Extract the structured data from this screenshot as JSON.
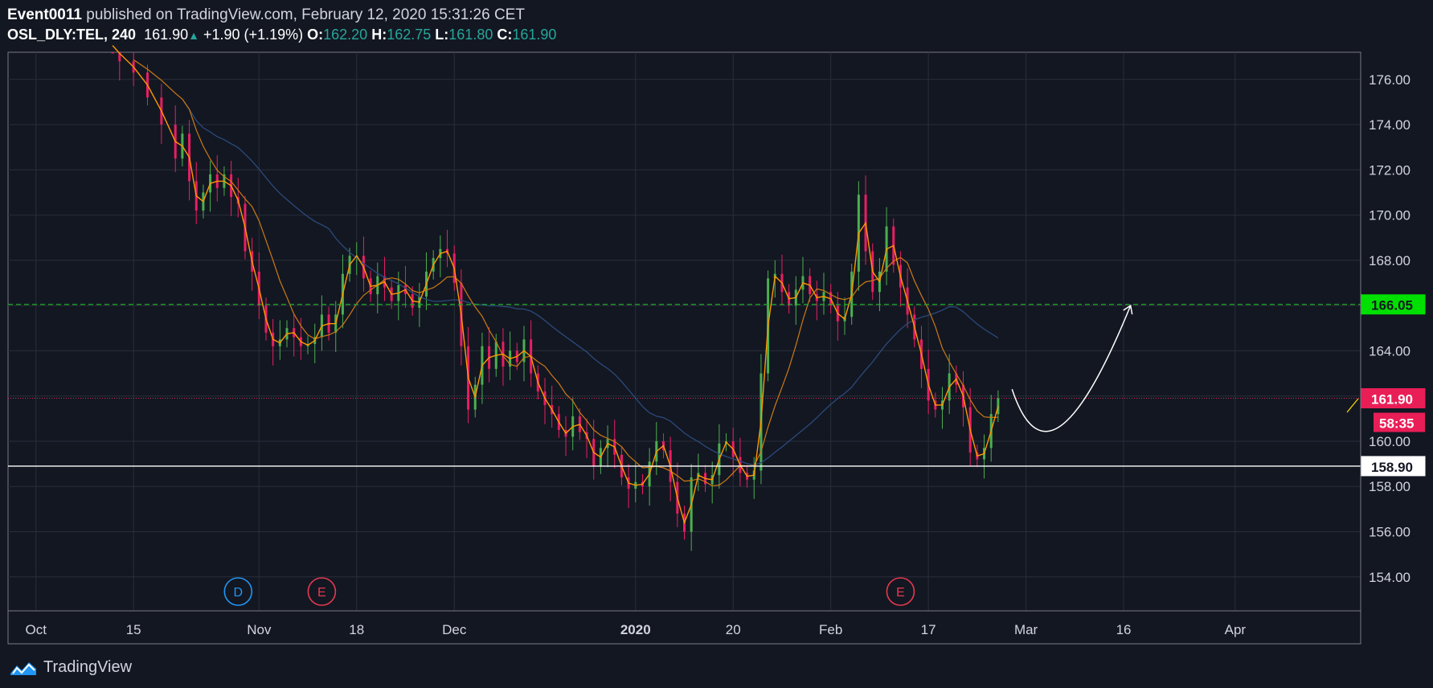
{
  "header": {
    "author": "Event0011",
    "published_text": "published on TradingView.com, February 12, 2020 15:31:26 CET",
    "symbol": "OSL_DLY:TEL, 240",
    "last": "161.90",
    "change": "+1.90 (+1.19%)",
    "o_label": "O:",
    "o": "162.20",
    "h_label": "H:",
    "h": "162.75",
    "l_label": "L:",
    "l": "161.80",
    "c_label": "C:",
    "c": "161.90"
  },
  "footer": {
    "brand": "TradingView"
  },
  "colors": {
    "background": "#131722",
    "grid": "#2a2e39",
    "up": "#4caf50",
    "down": "#e91e63",
    "ma_fast": "#ff9800",
    "ma_mid": "#cc7a14",
    "ma_slow": "#2a4a7a",
    "resistance": "#1faa2a",
    "price_line": "#d32f55",
    "support": "#ffffff"
  },
  "chart_data": {
    "type": "candlestick",
    "title": "OSL_DLY:TEL, 240",
    "ylim": [
      152.5,
      177.2
    ],
    "y_ticks": [
      154,
      156,
      158,
      160,
      162,
      164,
      166,
      168,
      170,
      172,
      174,
      176
    ],
    "y_tick_labels": [
      "154.00",
      "156.00",
      "158.00",
      "160.00",
      "162.00",
      "164.00",
      "166.00",
      "168.00",
      "170.00",
      "172.00",
      "174.00",
      "176.00"
    ],
    "x_tick_labels": [
      "Oct",
      "15",
      "Nov",
      "18",
      "Dec",
      "2020",
      "20",
      "Feb",
      "17",
      "Mar",
      "16",
      "Apr"
    ],
    "x_ticks_pos": [
      -5,
      2,
      11,
      18,
      25,
      38,
      45,
      52,
      59,
      66,
      73,
      81
    ],
    "x_range": [
      -7,
      90
    ],
    "close_series": [
      {
        "t": 0.5,
        "c": 177.5
      },
      {
        "t": 1,
        "c": 176.8
      },
      {
        "t": 2,
        "c": 176.3
      },
      {
        "t": 3,
        "c": 175.2
      },
      {
        "t": 4,
        "c": 174
      },
      {
        "t": 5,
        "c": 172.5
      },
      {
        "t": 5.5,
        "c": 173.6
      },
      {
        "t": 6,
        "c": 171.5
      },
      {
        "t": 6.5,
        "c": 170.2
      },
      {
        "t": 7,
        "c": 171
      },
      {
        "t": 7.5,
        "c": 171.8
      },
      {
        "t": 8,
        "c": 171.2
      },
      {
        "t": 8.5,
        "c": 171.8
      },
      {
        "t": 9,
        "c": 170.8
      },
      {
        "t": 9.5,
        "c": 170.5
      },
      {
        "t": 10,
        "c": 168.4
      },
      {
        "t": 10.5,
        "c": 167.5
      },
      {
        "t": 11,
        "c": 166
      },
      {
        "t": 11.5,
        "c": 164.8
      },
      {
        "t": 12,
        "c": 164.2
      },
      {
        "t": 12.5,
        "c": 164.5
      },
      {
        "t": 13,
        "c": 165
      },
      {
        "t": 13.5,
        "c": 164.6
      },
      {
        "t": 14,
        "c": 164.2
      },
      {
        "t": 14.5,
        "c": 164.3
      },
      {
        "t": 15,
        "c": 164.6
      },
      {
        "t": 15.5,
        "c": 165.6
      },
      {
        "t": 16,
        "c": 164.8
      },
      {
        "t": 16.5,
        "c": 165.6
      },
      {
        "t": 17,
        "c": 167.4
      },
      {
        "t": 17.5,
        "c": 168.2
      },
      {
        "t": 18,
        "c": 168.2
      },
      {
        "t": 18.5,
        "c": 167.2
      },
      {
        "t": 19,
        "c": 166.5
      },
      {
        "t": 19.5,
        "c": 167.3
      },
      {
        "t": 20,
        "c": 166.8
      },
      {
        "t": 20.5,
        "c": 166.2
      },
      {
        "t": 21,
        "c": 166.9
      },
      {
        "t": 21.5,
        "c": 166.5
      },
      {
        "t": 22,
        "c": 165.9
      },
      {
        "t": 22.5,
        "c": 166.4
      },
      {
        "t": 23,
        "c": 167.5
      },
      {
        "t": 23.5,
        "c": 168.1
      },
      {
        "t": 24,
        "c": 168.5
      },
      {
        "t": 24.5,
        "c": 168.3
      },
      {
        "t": 25,
        "c": 167
      },
      {
        "t": 25.5,
        "c": 164.2
      },
      {
        "t": 26,
        "c": 161.4
      },
      {
        "t": 26.5,
        "c": 162.5
      },
      {
        "t": 27,
        "c": 164.2
      },
      {
        "t": 27.5,
        "c": 163.2
      },
      {
        "t": 28,
        "c": 164.4
      },
      {
        "t": 28.5,
        "c": 163.3
      },
      {
        "t": 29,
        "c": 164
      },
      {
        "t": 29.5,
        "c": 163.5
      },
      {
        "t": 30,
        "c": 164.5
      },
      {
        "t": 30.5,
        "c": 163
      },
      {
        "t": 31,
        "c": 162.2
      },
      {
        "t": 31.5,
        "c": 161.6
      },
      {
        "t": 32,
        "c": 161.2
      },
      {
        "t": 32.5,
        "c": 160.5
      },
      {
        "t": 33,
        "c": 160.2
      },
      {
        "t": 33.5,
        "c": 161.1
      },
      {
        "t": 34,
        "c": 160.4
      },
      {
        "t": 34.5,
        "c": 160.1
      },
      {
        "t": 35,
        "c": 158.9
      },
      {
        "t": 35.5,
        "c": 159.7
      },
      {
        "t": 36,
        "c": 160.1
      },
      {
        "t": 36.5,
        "c": 159.4
      },
      {
        "t": 37,
        "c": 158.4
      },
      {
        "t": 37.5,
        "c": 157.9
      },
      {
        "t": 38,
        "c": 158.2
      },
      {
        "t": 38.5,
        "c": 158
      },
      {
        "t": 39,
        "c": 159.1
      },
      {
        "t": 39.5,
        "c": 160
      },
      {
        "t": 40,
        "c": 159.6
      },
      {
        "t": 40.5,
        "c": 158.2
      },
      {
        "t": 41,
        "c": 156.8
      },
      {
        "t": 41.5,
        "c": 156
      },
      {
        "t": 42,
        "c": 158.4
      },
      {
        "t": 42.5,
        "c": 158.6
      },
      {
        "t": 43,
        "c": 158.1
      },
      {
        "t": 43.5,
        "c": 158.5
      },
      {
        "t": 44,
        "c": 159.9
      },
      {
        "t": 44.5,
        "c": 160
      },
      {
        "t": 45,
        "c": 159.3
      },
      {
        "t": 45.5,
        "c": 158.6
      },
      {
        "t": 46,
        "c": 158.3
      },
      {
        "t": 46.5,
        "c": 158.7
      },
      {
        "t": 47,
        "c": 163
      },
      {
        "t": 47.5,
        "c": 167.2
      },
      {
        "t": 48,
        "c": 167.4
      },
      {
        "t": 48.5,
        "c": 166.6
      },
      {
        "t": 49,
        "c": 166
      },
      {
        "t": 49.5,
        "c": 166.7
      },
      {
        "t": 50,
        "c": 167.3
      },
      {
        "t": 50.5,
        "c": 166.5
      },
      {
        "t": 51,
        "c": 166.2
      },
      {
        "t": 51.5,
        "c": 166.6
      },
      {
        "t": 52,
        "c": 166
      },
      {
        "t": 52.5,
        "c": 165.3
      },
      {
        "t": 53,
        "c": 165.5
      },
      {
        "t": 53.5,
        "c": 167.5
      },
      {
        "t": 54,
        "c": 170.9
      },
      {
        "t": 54.5,
        "c": 168.4
      },
      {
        "t": 55,
        "c": 166.6
      },
      {
        "t": 55.5,
        "c": 167.5
      },
      {
        "t": 56,
        "c": 169.5
      },
      {
        "t": 56.5,
        "c": 167.8
      },
      {
        "t": 57,
        "c": 166.8
      },
      {
        "t": 57.5,
        "c": 165.6
      },
      {
        "t": 58,
        "c": 164.5
      },
      {
        "t": 58.5,
        "c": 163.2
      },
      {
        "t": 59,
        "c": 161.8
      },
      {
        "t": 59.5,
        "c": 161.4
      },
      {
        "t": 60,
        "c": 161.8
      },
      {
        "t": 60.5,
        "c": 163
      },
      {
        "t": 61,
        "c": 162.5
      },
      {
        "t": 61.5,
        "c": 161.5
      },
      {
        "t": 62,
        "c": 159.5
      },
      {
        "t": 62.5,
        "c": 159.2
      },
      {
        "t": 63,
        "c": 159.7
      },
      {
        "t": 63.5,
        "c": 161.2
      },
      {
        "t": 64,
        "c": 161.9
      }
    ],
    "levels": [
      {
        "name": "resistance",
        "value": 166.05,
        "label": "166.05"
      },
      {
        "name": "last_price",
        "value": 161.9,
        "label": "161.90"
      },
      {
        "name": "support",
        "value": 158.9,
        "label": "158.90"
      }
    ],
    "countdown": "58:35",
    "events": [
      {
        "label": "D",
        "t": 9.5,
        "kind": "dividend"
      },
      {
        "label": "E",
        "t": 15.5,
        "kind": "earnings"
      },
      {
        "label": "E",
        "t": 57,
        "kind": "earnings"
      }
    ],
    "projection_path": [
      {
        "t": 65,
        "v": 162.3
      },
      {
        "t": 67,
        "v": 160.6
      },
      {
        "t": 70,
        "v": 161.7
      },
      {
        "t": 73.5,
        "v": 166.0
      }
    ]
  }
}
